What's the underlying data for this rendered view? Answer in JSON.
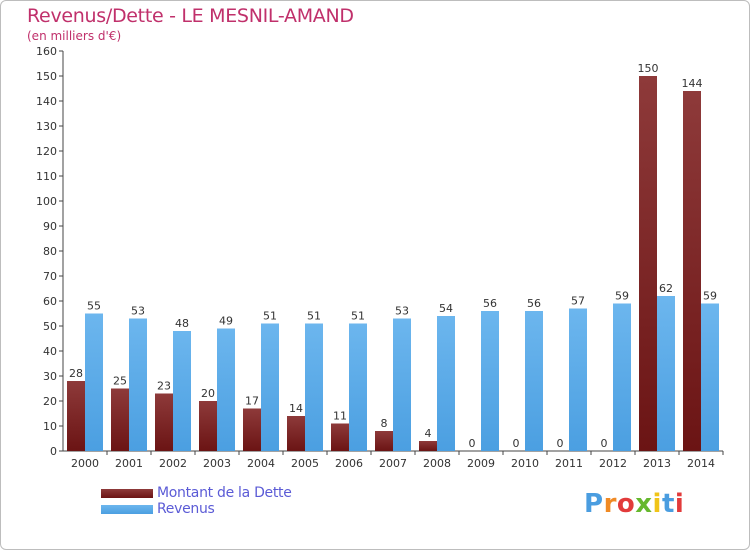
{
  "colors": {
    "dette": "#6b1414",
    "dette_light": "#8e3a3a",
    "revenus": "#4b9fe1",
    "revenus_light": "#6cb6ee",
    "axis_text": "#333333",
    "title": "#c0306b",
    "legend_text": "#5b5bd6"
  },
  "chart_data": {
    "type": "bar",
    "title": "Revenus/Dette - LE MESNIL-AMAND",
    "subtitle": "(en milliers d'€)",
    "xlabel": "",
    "ylabel": "",
    "ylim": [
      0,
      160
    ],
    "yticks": [
      0,
      10,
      20,
      30,
      40,
      50,
      60,
      70,
      80,
      90,
      100,
      110,
      120,
      130,
      140,
      150,
      160
    ],
    "grid": false,
    "legend_position": "bottom-left",
    "categories": [
      "2000",
      "2001",
      "2002",
      "2003",
      "2004",
      "2005",
      "2006",
      "2007",
      "2008",
      "2009",
      "2010",
      "2011",
      "2012",
      "2013",
      "2014"
    ],
    "series": [
      {
        "name": "Montant de la Dette",
        "values": [
          28,
          25,
          23,
          20,
          17,
          14,
          11,
          8,
          4,
          0,
          0,
          0,
          0,
          150,
          144
        ]
      },
      {
        "name": "Revenus",
        "values": [
          55,
          53,
          48,
          49,
          51,
          51,
          51,
          53,
          54,
          56,
          56,
          57,
          59,
          62,
          59
        ]
      }
    ]
  },
  "logo": {
    "letters": [
      {
        "ch": "P",
        "color": "#4a9de0"
      },
      {
        "ch": "r",
        "color": "#f08a24"
      },
      {
        "ch": "o",
        "color": "#e23b3b"
      },
      {
        "ch": "x",
        "color": "#66b82e"
      },
      {
        "ch": "i",
        "color": "#f0c419"
      },
      {
        "ch": "t",
        "color": "#4a9de0"
      },
      {
        "ch": "i",
        "color": "#e23b3b"
      }
    ]
  }
}
